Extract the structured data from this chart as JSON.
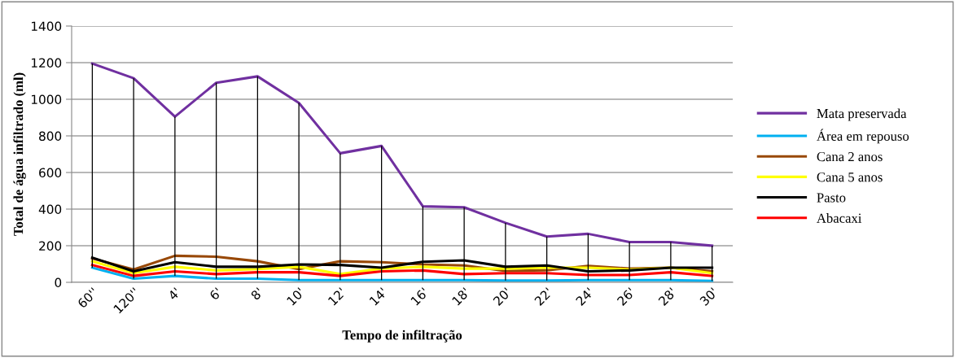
{
  "chart_data": {
    "type": "line",
    "xlabel": "Tempo de infiltração",
    "ylabel": "Total de água infiltrado (ml)",
    "categories": [
      "60''",
      "120''",
      "4'",
      "6'",
      "8'",
      "10'",
      "12'",
      "14'",
      "16'",
      "18'",
      "20'",
      "22'",
      "24'",
      "26'",
      "28'",
      "30'"
    ],
    "series": [
      {
        "name": "Mata preservada",
        "color": "#7030a0",
        "values": [
          1195,
          1115,
          905,
          1090,
          1125,
          980,
          705,
          745,
          415,
          410,
          325,
          250,
          265,
          220,
          220,
          200
        ]
      },
      {
        "name": "Área em repouso",
        "color": "#00b0f0",
        "values": [
          80,
          20,
          35,
          20,
          20,
          12,
          12,
          12,
          12,
          12,
          10,
          10,
          12,
          12,
          12,
          8
        ]
      },
      {
        "name": "Cana 2 anos",
        "color": "#984806",
        "values": [
          130,
          70,
          145,
          140,
          115,
          72,
          115,
          110,
          98,
          92,
          62,
          66,
          90,
          75,
          80,
          60
        ]
      },
      {
        "name": "Cana 5 anos",
        "color": "#ffff00",
        "values": [
          115,
          50,
          85,
          65,
          72,
          85,
          45,
          75,
          85,
          75,
          75,
          80,
          80,
          70,
          80,
          50
        ]
      },
      {
        "name": "Pasto",
        "color": "#000000",
        "values": [
          135,
          60,
          110,
          85,
          85,
          98,
          95,
          80,
          112,
          120,
          85,
          92,
          60,
          65,
          80,
          80
        ]
      },
      {
        "name": "Abacaxi",
        "color": "#ff0000",
        "values": [
          95,
          35,
          60,
          45,
          55,
          55,
          35,
          60,
          65,
          45,
          50,
          50,
          40,
          40,
          55,
          35
        ]
      },
      {
        "type": "bar",
        "color": "#000000",
        "base": [
          80,
          20,
          35,
          20,
          20,
          12,
          12,
          12,
          12,
          12,
          10,
          10,
          12,
          12,
          12,
          8
        ],
        "values": [
          1115,
          1095,
          870,
          1070,
          1105,
          968,
          693,
          733,
          403,
          398,
          315,
          240,
          253,
          208,
          208,
          192
        ]
      }
    ],
    "ylim": [
      0,
      1400
    ],
    "yticks": [
      0,
      200,
      400,
      600,
      800,
      1000,
      1200,
      1400
    ],
    "grid": "y",
    "legend": "right",
    "marker": "none",
    "line_style": "solid"
  }
}
